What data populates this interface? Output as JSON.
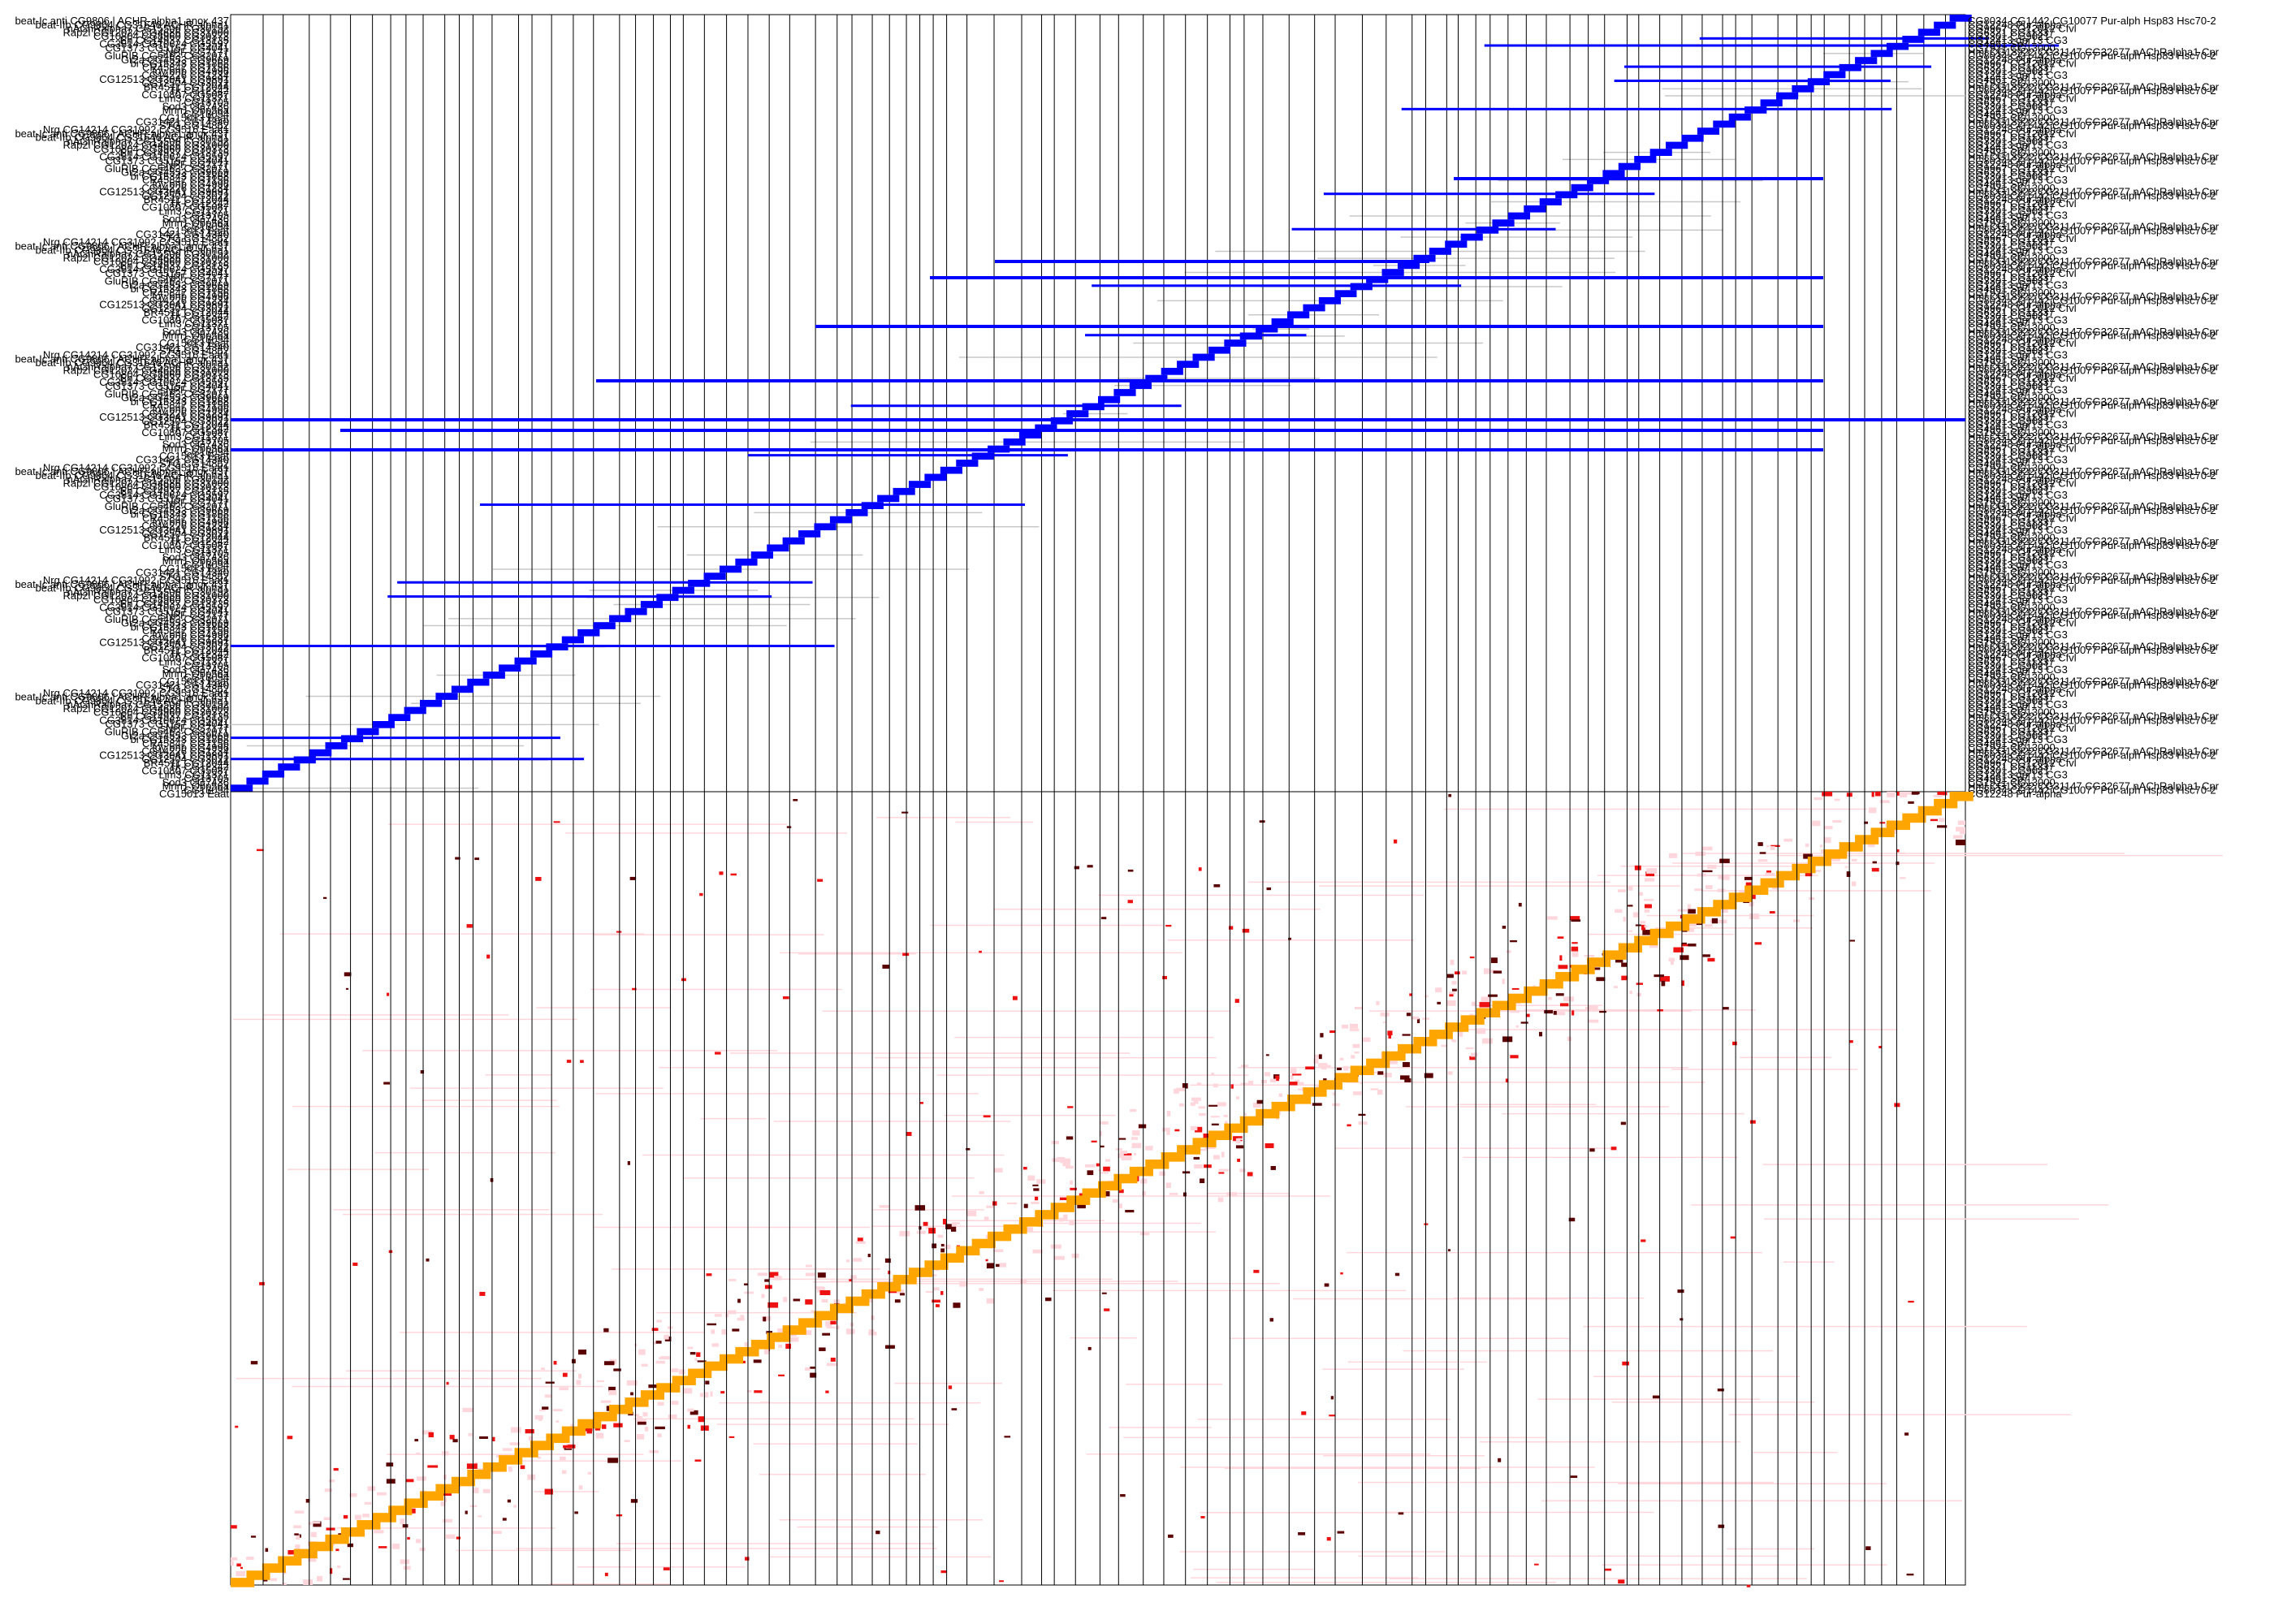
{
  "figure": {
    "colors": {
      "band": "#0000ff",
      "diagonal": "#ffa500",
      "grey_line": "#c8c8c8",
      "divider": "#000000",
      "heat_low": "#ffd6dc",
      "heat_mid": "#ee1111",
      "heat_high": "#5a0000"
    }
  },
  "chart_data": [
    {
      "type": "line",
      "panel": "top",
      "description_free": true,
      "xlabel": "",
      "ylabel": "",
      "left_labels": [
        "beat-Ic anti CG9806 | ACHR-alpha1 anox 437",
        "beat-IIb CG9864 CG31646 ACHR-alpha1",
        "nAChRalpha7 CG15506 CG30152",
        "Rap2l CG12024 CG4686 CG31000",
        "CG10804 CG8960 CG30373",
        "Eh CG14937 CG13135",
        "CG3814 CG10624 CG5597",
        "CG1373 CG5157 CG4041",
        "sNPF CG7177",
        "GluRIB CG5463 CG32071",
        "Gr2a CG4553 CG9669",
        "bi CG15343 CG1868",
        "CR45847 CG7156",
        "toy bnb CG4996",
        "CG14226 CG1234",
        "CG12513 CG3041 CG9891",
        "CG12504 CG3022",
        "BR4511 CG12044",
        "Tk CG12342",
        "CG10807 CG5087",
        "Lim3 CG11371",
        "CG13705",
        "Sod3 CG7436",
        "Mnn1 Obp56a",
        "CG13094",
        "CG15013 Eaat",
        "CG31421 CG14340",
        "STG CG14862",
        "Nrg CG14214 CG31992 CG9516 Eaat1"
      ],
      "right_labels": [
        "CG8034 CG1442 CG10077 Pur-alph Hsp83 Hsc70-2",
        "CG12248 Pur-alpha",
        "CG9967 CG12012 Cfvl",
        "CG6321 CG11337",
        "CG3301 CG9021",
        "CG12413 dpr13 CG3",
        "CG4961 Sp7",
        "CG1921 CG13000",
        "Hml CG13922 CG31147 CG32677 nAChRalpha1 Cpr"
      ]
    },
    {
      "type": "heatmap",
      "panel": "bottom",
      "xlabel": "",
      "ylabel": ""
    }
  ]
}
